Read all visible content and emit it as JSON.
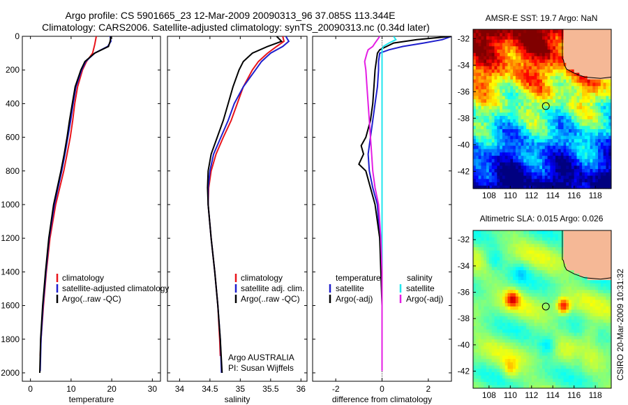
{
  "header": {
    "title_line1": "Argo profile: CS 5901665_23 12-Mar-2009 20090313_96 37.085S 113.344E",
    "title_line2": "Climatology: CARS2006. Satellite-adjusted climatology: synTS_20090313.nc (0.34d later)"
  },
  "side_label": "CSIRO 20-Mar-2009 10:31:32",
  "colors": {
    "red": "#e8141b",
    "blue": "#1e1ecc",
    "black": "#000000",
    "cyan": "#22e6ee",
    "magenta": "#e41ee4",
    "land": "#f5b896"
  },
  "chart_data": [
    {
      "type": "line",
      "xlabel": "temperature",
      "ylabel": "",
      "xlim": [
        -2,
        32
      ],
      "ylim": [
        2050,
        0
      ],
      "xticks": [
        "0",
        "10",
        "20",
        "30"
      ],
      "yticks": [
        "0",
        "200",
        "400",
        "600",
        "800",
        "1000",
        "1200",
        "1400",
        "1600",
        "1800",
        "2000"
      ],
      "legend": [
        "climatology",
        "satellite-adjusted climatology",
        "Argo(..raw -QC)"
      ],
      "series": [
        {
          "name": "climatology",
          "color": "red",
          "y": [
            0,
            50,
            100,
            150,
            200,
            300,
            400,
            500,
            600,
            700,
            800,
            900,
            1000,
            1200,
            1400,
            1600,
            1800,
            1900
          ],
          "x": [
            16.2,
            15.8,
            15.3,
            13.8,
            12.8,
            11.6,
            10.9,
            10.4,
            9.8,
            9.0,
            8.2,
            7.2,
            6.2,
            4.8,
            3.9,
            3.2,
            2.6,
            2.4
          ]
        },
        {
          "name": "satellite-adjusted climatology",
          "color": "blue",
          "y": [
            0,
            30,
            60,
            100,
            150,
            200,
            300,
            400,
            500,
            600,
            700,
            800,
            900,
            1000,
            1200,
            1400,
            1600,
            1800,
            1990
          ],
          "x": [
            19.6,
            19.8,
            19.0,
            15.8,
            13.6,
            12.6,
            11.2,
            10.5,
            9.9,
            9.2,
            8.5,
            7.7,
            6.8,
            5.9,
            4.6,
            3.8,
            3.1,
            2.6,
            2.4
          ]
        },
        {
          "name": "Argo(..raw -QC)",
          "color": "black",
          "y": [
            0,
            30,
            60,
            100,
            150,
            200,
            300,
            400,
            500,
            600,
            700,
            800,
            900,
            1000,
            1200,
            1400,
            1600,
            1800,
            2000
          ],
          "x": [
            19.8,
            19.6,
            19.2,
            15.8,
            13.4,
            12.4,
            11.0,
            10.3,
            9.6,
            9.0,
            8.3,
            7.5,
            6.6,
            5.7,
            4.5,
            3.7,
            3.0,
            2.5,
            2.3
          ]
        }
      ]
    },
    {
      "type": "line",
      "xlabel": "salinity",
      "ylabel": "",
      "xlim": [
        33.8,
        36.1
      ],
      "ylim": [
        2050,
        0
      ],
      "xticks": [
        "34",
        "34.5",
        "35",
        "35.5",
        "36"
      ],
      "legend": [
        "climatology",
        "satellite adj. clim.",
        "Argo(..raw -QC)"
      ],
      "annotation_line1": "Argo AUSTRALIA",
      "annotation_line2": "PI: Susan Wijffels",
      "series": [
        {
          "name": "climatology",
          "color": "red",
          "y": [
            0,
            30,
            60,
            100,
            150,
            200,
            300,
            400,
            500,
            600,
            700,
            800,
            900,
            1000,
            1200,
            1400,
            1600,
            1800,
            1900
          ],
          "x": [
            35.7,
            35.72,
            35.6,
            35.45,
            35.3,
            35.2,
            35.05,
            34.95,
            34.85,
            34.72,
            34.6,
            34.52,
            34.48,
            34.47,
            34.52,
            34.58,
            34.63,
            34.66,
            34.67
          ]
        },
        {
          "name": "satellite adj. clim.",
          "color": "blue",
          "y": [
            0,
            30,
            60,
            100,
            150,
            200,
            300,
            400,
            500,
            600,
            700,
            800,
            900,
            1000,
            1200,
            1400,
            1600,
            1800,
            2000
          ],
          "x": [
            35.75,
            35.8,
            35.7,
            35.5,
            35.35,
            35.25,
            35.05,
            34.9,
            34.8,
            34.68,
            34.56,
            34.5,
            34.47,
            34.47,
            34.52,
            34.58,
            34.63,
            34.67,
            34.69
          ]
        },
        {
          "name": "Argo(..raw -QC)",
          "color": "black",
          "y": [
            0,
            30,
            60,
            100,
            150,
            200,
            300,
            400,
            500,
            600,
            700,
            800,
            900,
            1000,
            1200,
            1400,
            1600,
            1800,
            2000
          ],
          "x": [
            35.6,
            35.68,
            35.45,
            35.2,
            35.05,
            34.98,
            34.88,
            34.8,
            34.72,
            34.62,
            34.52,
            34.47,
            34.46,
            34.47,
            34.52,
            34.58,
            34.63,
            34.67,
            34.7
          ]
        }
      ]
    },
    {
      "type": "line",
      "xlabel": "difference from climatology",
      "ylabel": "",
      "xlim": [
        -3,
        3
      ],
      "ylim": [
        2050,
        0
      ],
      "xticks": [
        "-2",
        "0",
        "2"
      ],
      "legend_left_title": "temperature",
      "legend_right_title": "salinity",
      "legend": [
        "satellite",
        "Argo(-adj)",
        "satellite",
        "Argo(-adj)"
      ],
      "series": [
        {
          "name": "temperature satellite",
          "color": "blue",
          "y": [
            0,
            20,
            40,
            60,
            80,
            100,
            150,
            200,
            300,
            400,
            500,
            600,
            700,
            800,
            900,
            1000,
            1200,
            1400,
            1600,
            1800,
            1990
          ],
          "x": [
            3.0,
            2.6,
            1.8,
            0.9,
            0.3,
            -0.1,
            -0.15,
            -0.15,
            -0.2,
            -0.3,
            -0.4,
            -0.5,
            -0.6,
            -0.55,
            -0.4,
            -0.2,
            -0.1,
            0.0,
            0.0,
            0.0,
            0.0
          ]
        },
        {
          "name": "temperature Argo(-adj)",
          "color": "black",
          "y": [
            0,
            20,
            40,
            60,
            80,
            100,
            150,
            200,
            300,
            400,
            500,
            600,
            650,
            700,
            760,
            800,
            850,
            900,
            1000,
            1200,
            1400,
            1600,
            1800,
            1990
          ],
          "x": [
            3.0,
            1.5,
            0.5,
            0.2,
            -0.1,
            -0.2,
            -0.25,
            -0.3,
            -0.35,
            -0.4,
            -0.5,
            -0.7,
            -0.9,
            -0.8,
            -1.0,
            -0.7,
            -0.6,
            -0.5,
            -0.3,
            -0.1,
            -0.05,
            0.0,
            0.0,
            0.0
          ]
        },
        {
          "name": "salinity satellite",
          "color": "cyan",
          "y": [
            0,
            20,
            40,
            60,
            80,
            100,
            150,
            200,
            300,
            400,
            600,
            800,
            1000,
            1200,
            1400,
            1600,
            1800,
            1990
          ],
          "x": [
            0.5,
            0.6,
            0.3,
            0.05,
            0.0,
            0.0,
            0.0,
            0.0,
            0.0,
            0.0,
            0.0,
            0.0,
            0.0,
            0.0,
            0.0,
            0.0,
            0.0,
            0.0
          ]
        },
        {
          "name": "salinity Argo(-adj)",
          "color": "magenta",
          "y": [
            0,
            20,
            40,
            60,
            80,
            100,
            150,
            200,
            300,
            400,
            500,
            600,
            700,
            800,
            900,
            1000,
            1200,
            1400,
            1600,
            1800,
            1990
          ],
          "x": [
            -0.1,
            -0.2,
            -0.3,
            -0.4,
            -0.6,
            -0.65,
            -0.75,
            -0.7,
            -0.65,
            -0.6,
            -0.55,
            -0.5,
            -0.45,
            -0.4,
            -0.3,
            -0.15,
            -0.05,
            0.0,
            0.0,
            0.0,
            0.0
          ]
        }
      ]
    },
    {
      "type": "heatmap",
      "title": "AMSR-E SST: 19.7 Argo: NaN",
      "xlim": [
        106.5,
        119.5
      ],
      "ylim": [
        -43.3,
        -31.3
      ],
      "xticks": [
        "108",
        "110",
        "112",
        "114",
        "116",
        "118"
      ],
      "yticks": [
        "-32",
        "-34",
        "-36",
        "-38",
        "-40",
        "-42"
      ],
      "marker": {
        "lon": 113.344,
        "lat": -37.085
      },
      "field": "sst"
    },
    {
      "type": "heatmap",
      "title": "Altimetric SLA: 0.015 Argo: 0.026",
      "xlim": [
        106.5,
        119.5
      ],
      "ylim": [
        -43.3,
        -31.3
      ],
      "xticks": [
        "108",
        "110",
        "112",
        "114",
        "116",
        "118"
      ],
      "yticks": [
        "-32",
        "-34",
        "-36",
        "-38",
        "-40",
        "-42"
      ],
      "marker": {
        "lon": 113.344,
        "lat": -37.085
      },
      "field": "sla"
    }
  ]
}
